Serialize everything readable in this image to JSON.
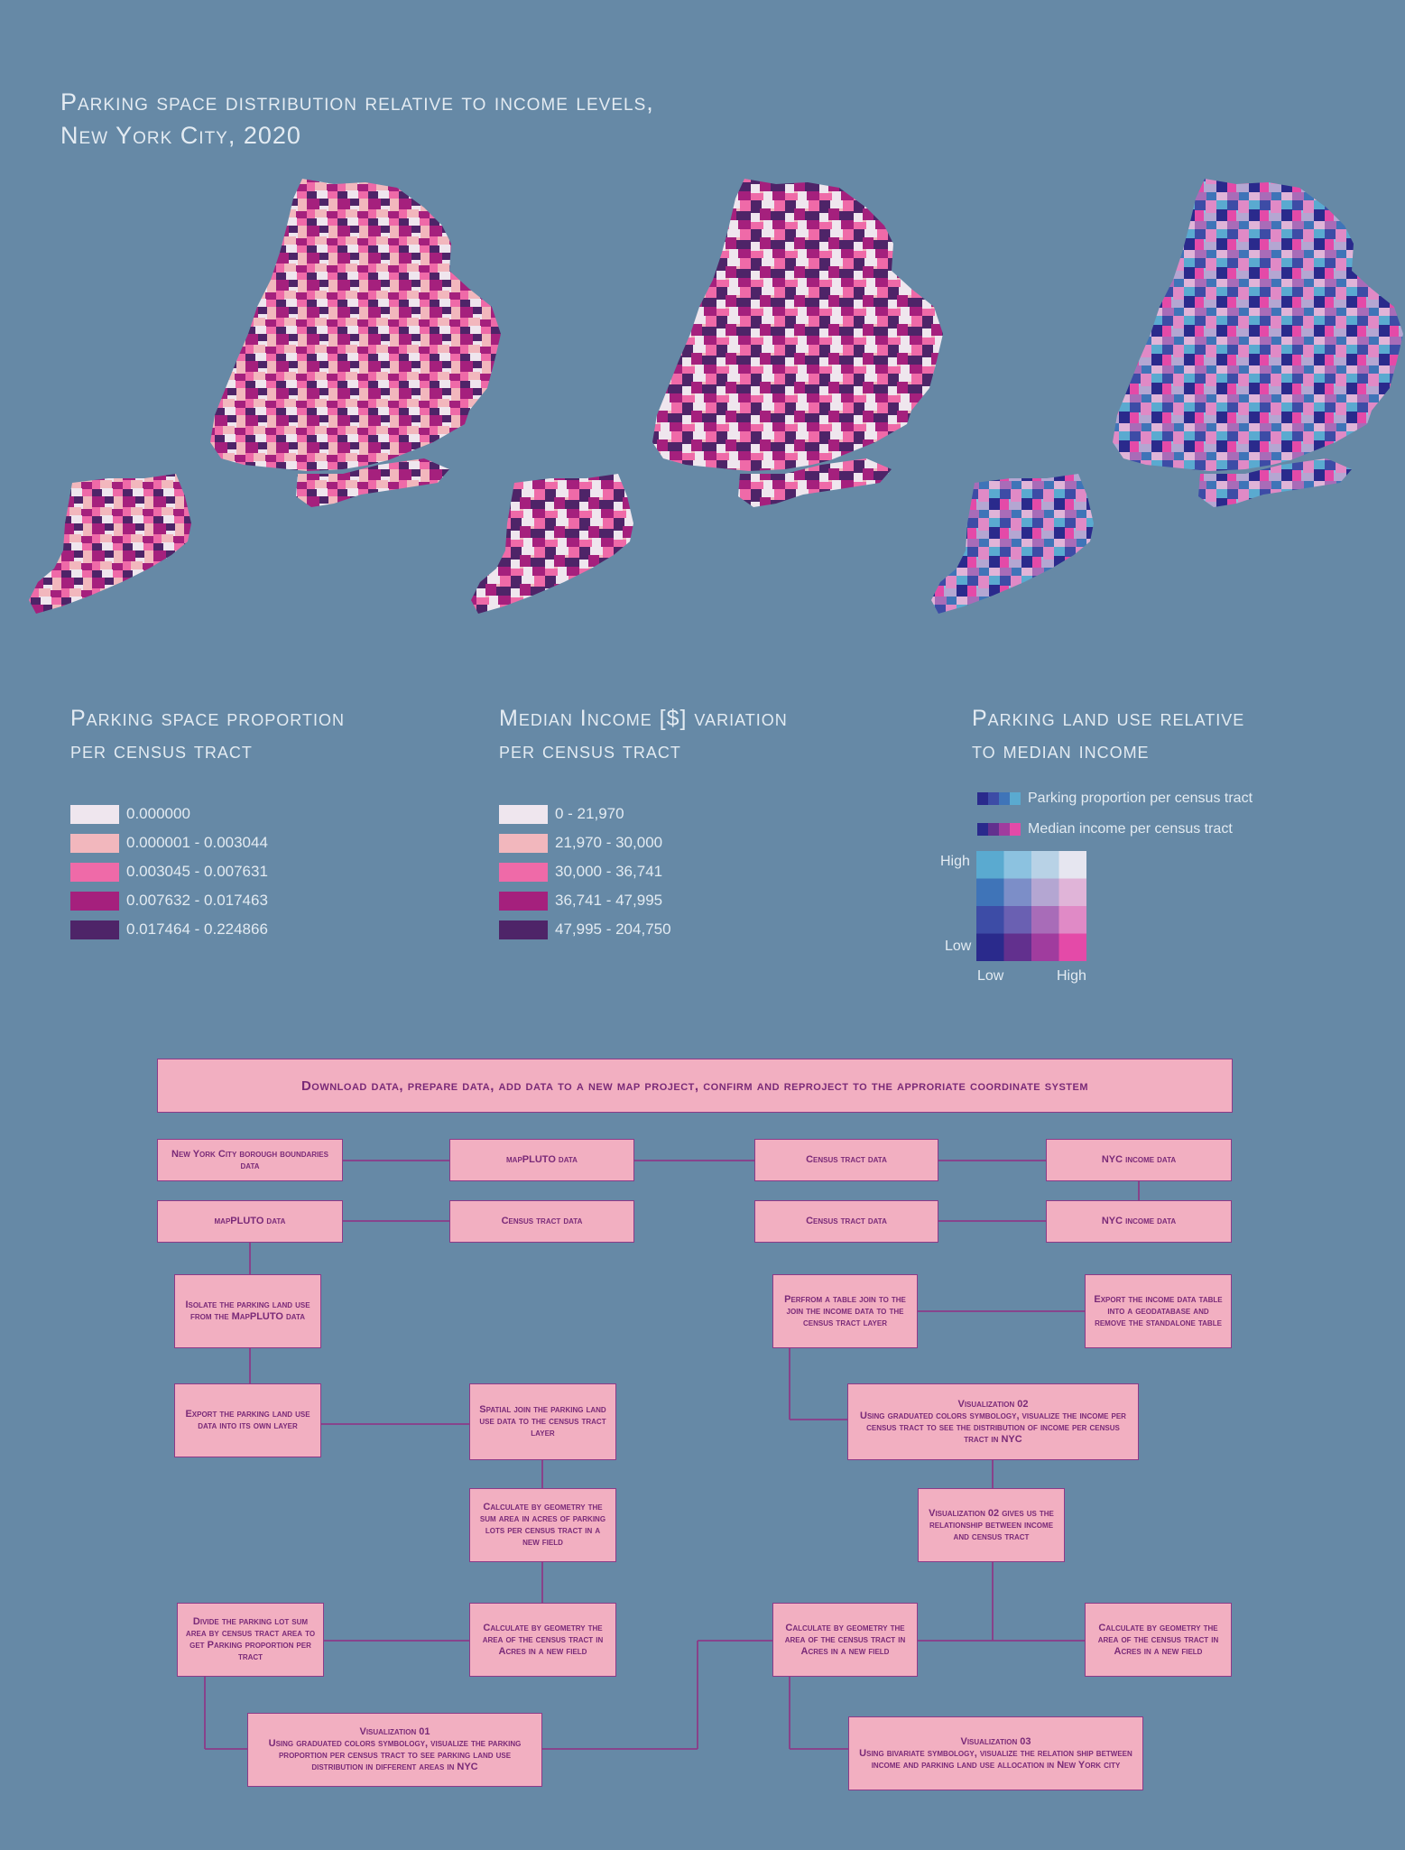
{
  "title": {
    "line1": "Parking space distribution relative to income levels,",
    "line2": "New York City, 2020"
  },
  "colors": {
    "background": "#6689a6",
    "sequential": [
      "#efe6ee",
      "#f2b7bd",
      "#ef6aa8",
      "#a5207d",
      "#4e2468"
    ],
    "bivariate": [
      [
        "#5aaad0",
        "#8cc2e0",
        "#b8d2e6",
        "#e6e6f0"
      ],
      [
        "#3f74b8",
        "#7c8ec8",
        "#b4a6d2",
        "#e0b4d8"
      ],
      [
        "#3d4ca6",
        "#6a60b2",
        "#a86cb8",
        "#e08ac6"
      ],
      [
        "#2a2a8c",
        "#62308e",
        "#a03c9e",
        "#e44aa8"
      ]
    ],
    "box_fill": "#f2afc1",
    "box_border": "#8c3a88",
    "box_text": "#7a2a78"
  },
  "legends": {
    "parking": {
      "title_line1": "Parking space proportion",
      "title_line2": "per census tract",
      "items": [
        "0.000000",
        "0.000001 - 0.003044",
        "0.003045 - 0.007631",
        "0.007632 - 0.017463",
        "0.017464 - 0.224866"
      ]
    },
    "income": {
      "title_line1": "Median Income [$] variation",
      "title_line2": "per census tract",
      "items": [
        "0 - 21,970",
        "21,970 - 30,000",
        "30,000 - 36,741",
        "36,741 - 47,995",
        "47,995 - 204,750"
      ]
    },
    "bivariate": {
      "title_line1": "Parking land use relative",
      "title_line2": "to median income",
      "parking_label": "Parking proportion per census tract",
      "income_label": "Median income per census tract",
      "high_y": "High",
      "low_y": "Low",
      "low_x": "Low",
      "high_x": "High"
    }
  },
  "flow": {
    "top": "Download data, prepare data, add data to a new map project, confirm and reproject to the approriate coordinate system",
    "row1": [
      "New York City borough boundaries data",
      "mapPLUTO data",
      "Census tract data",
      "NYC income data"
    ],
    "row2": [
      "mapPLUTO data",
      "Census tract data",
      "Census tract data",
      "NYC income data"
    ],
    "isolate": "Isolate the parking land use from the MapPLUTO data",
    "export_parking": "Export the parking land use data into its own layer",
    "spatial_join": "Spatial join the parking land use data to the census tract layer",
    "calc_lots": "Calculate by geometry the sum area in acres of parking lots per census tract in a new field",
    "calc_tract_left": "Calculate by geometry the area of the census tract in Acres in a new field",
    "divide": "Divide the parking lot sum area by census tract area to get Parking proportion per tract",
    "viz1_title": "Visualization 01",
    "viz1_body": "Using graduated colors symbology, visualize the parking proportion per census tract to see parking land use distribution in different areas in NYC",
    "table_join": "Perfrom a table join to the join the income data to the census tract layer",
    "export_income": "Export the income data table into a geodatabase and remove the standalone table",
    "viz2_title": "Visualization 02",
    "viz2_body": "Using graduated colors symbology, visualize the income per census tract to see the distribution of income per census tract in NYC",
    "viz2_gives": "Visualization 02 gives us the relationship between income and census tract",
    "calc_tract_mid": "Calculate by geometry the area of the census tract in Acres in a new field",
    "calc_tract_right": "Calculate by geometry the area of the census tract in Acres in a new field",
    "viz3_title": "Visualization 03",
    "viz3_body": "Using bivariate symbology, visualize the relation ship between income and parking land use allocation in New York city"
  }
}
